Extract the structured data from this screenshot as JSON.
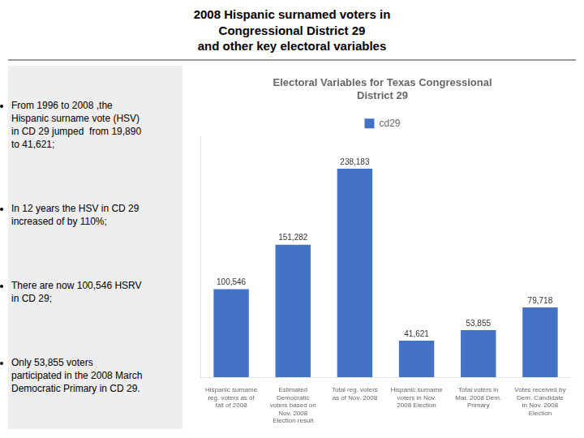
{
  "chart_data": {
    "type": "bar",
    "title": "Electoral Variables for Texas Congressional\nDistrict 29",
    "annotations": [
      "2008 Hispanic surnamed voters in\nCongressional District 29\nand other key electoral variables",
      "From 1996 to 2008 ,the\nHispanic surname vote (HSV)\nin CD 29 jumped  from 19,890\nto 41,621;",
      "In 12 years the HSV in CD 29\nincreased of by 110%;",
      "There are now 100,546 HSRV\nin CD 29;",
      "Only 53,855 voters\nparticipated in the 2008 March\nDemocratic Primary in CD 29."
    ],
    "categories": [
      "Hispanic surname\nreg. voters as of\nfall of 2008",
      "Estimated\nDemocratic\nvoters based on\nNov. 2008\nElection result",
      "Total reg. voters\nas of Nov. 2008",
      "Hispanic surname\nvoters in Nov.\n2008 Election",
      "Total voters in\nMar. 2008 Dem.\nPrimary",
      "Votes received by\nDem. Candidate\nin Nov. 2008\nElection"
    ],
    "series": [
      {
        "name": "cd29",
        "color": "#4472c4",
        "values": [
          100546,
          151282,
          238183,
          41621,
          53855,
          79718
        ],
        "value_labels": [
          "100,546",
          "151,282",
          "238,183",
          "41,621",
          "53,855",
          "79,718"
        ]
      }
    ],
    "ylim": [
      0,
      275000
    ],
    "grid": false,
    "legend": "top",
    "data_labels": true,
    "tick_labels": "x"
  }
}
